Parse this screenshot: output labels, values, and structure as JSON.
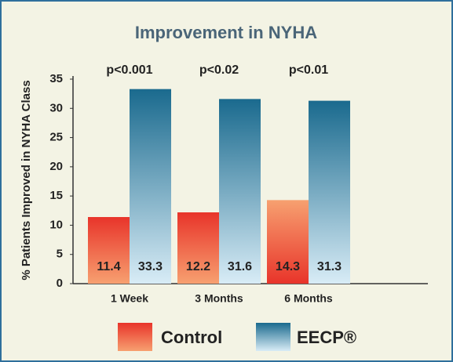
{
  "chart_data": {
    "type": "bar",
    "title": "Improvement in NYHA",
    "y_label": "% Patients Improved in NYHA Class",
    "categories": [
      "1 Week",
      "3 Months",
      "6 Months"
    ],
    "series": [
      {
        "name": "Control",
        "color": "#e8402a",
        "values": [
          11.4,
          12.2,
          14.3
        ]
      },
      {
        "name": "EECP®",
        "color": "#1f6f92",
        "values": [
          33.3,
          31.6,
          31.3
        ]
      }
    ],
    "annotations": [
      "p<0.001",
      "p<0.02",
      "p<0.01"
    ],
    "ylim": [
      0,
      35
    ],
    "yticks": [
      0,
      5,
      10,
      15,
      20,
      25,
      30,
      35
    ],
    "grid": false,
    "legend": "bottom"
  }
}
